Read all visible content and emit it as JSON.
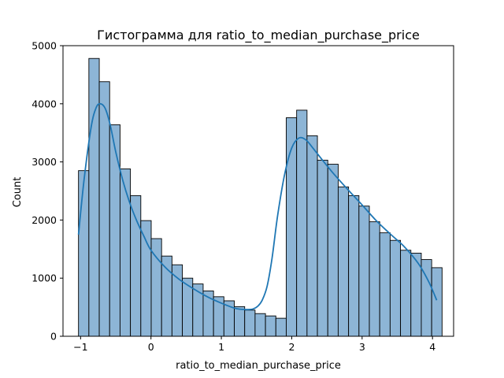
{
  "chart_data": {
    "type": "bar",
    "title": "Гистограмма для ratio_to_median_purchase_price",
    "xlabel": "ratio_to_median_purchase_price",
    "ylabel": "Count",
    "xlim": [
      -1.25,
      4.3
    ],
    "ylim": [
      0,
      5000
    ],
    "x_ticks": [
      -1,
      0,
      1,
      2,
      3,
      4
    ],
    "x_tick_labels": [
      "−1",
      "0",
      "1",
      "2",
      "3",
      "4"
    ],
    "y_ticks": [
      0,
      1000,
      2000,
      3000,
      4000,
      5000
    ],
    "y_tick_labels": [
      "0",
      "1000",
      "2000",
      "3000",
      "4000",
      "5000"
    ],
    "grid": false,
    "bins": {
      "start": -1.03,
      "width": 0.1476,
      "counts": [
        2850,
        4780,
        4380,
        3640,
        2880,
        2420,
        1990,
        1680,
        1380,
        1230,
        1000,
        900,
        780,
        680,
        610,
        510,
        450,
        390,
        350,
        310,
        3760,
        3890,
        3450,
        3030,
        2960,
        2570,
        2420,
        2240,
        1970,
        1780,
        1650,
        1480,
        1430,
        1320,
        1180
      ]
    },
    "kde": {
      "x": [
        -1.03,
        -0.95,
        -0.85,
        -0.78,
        -0.72,
        -0.65,
        -0.58,
        -0.5,
        -0.4,
        -0.3,
        -0.2,
        -0.1,
        0.0,
        0.2,
        0.4,
        0.6,
        0.8,
        1.0,
        1.2,
        1.35,
        1.45,
        1.52,
        1.58,
        1.65,
        1.72,
        1.8,
        1.9,
        2.0,
        2.1,
        2.2,
        2.3,
        2.45,
        2.6,
        2.8,
        3.0,
        3.2,
        3.4,
        3.6,
        3.8,
        3.95,
        4.06
      ],
      "y": [
        1750,
        2700,
        3600,
        3930,
        4000,
        3920,
        3640,
        3170,
        2680,
        2290,
        1980,
        1720,
        1480,
        1190,
        980,
        820,
        680,
        570,
        480,
        460,
        470,
        520,
        620,
        860,
        1340,
        2080,
        2790,
        3240,
        3410,
        3380,
        3240,
        3010,
        2790,
        2520,
        2260,
        1990,
        1760,
        1540,
        1250,
        930,
        620
      ]
    },
    "series_color": "#1f77b4",
    "bar_fill": "#8db5d6",
    "bar_edge": "#000000"
  }
}
